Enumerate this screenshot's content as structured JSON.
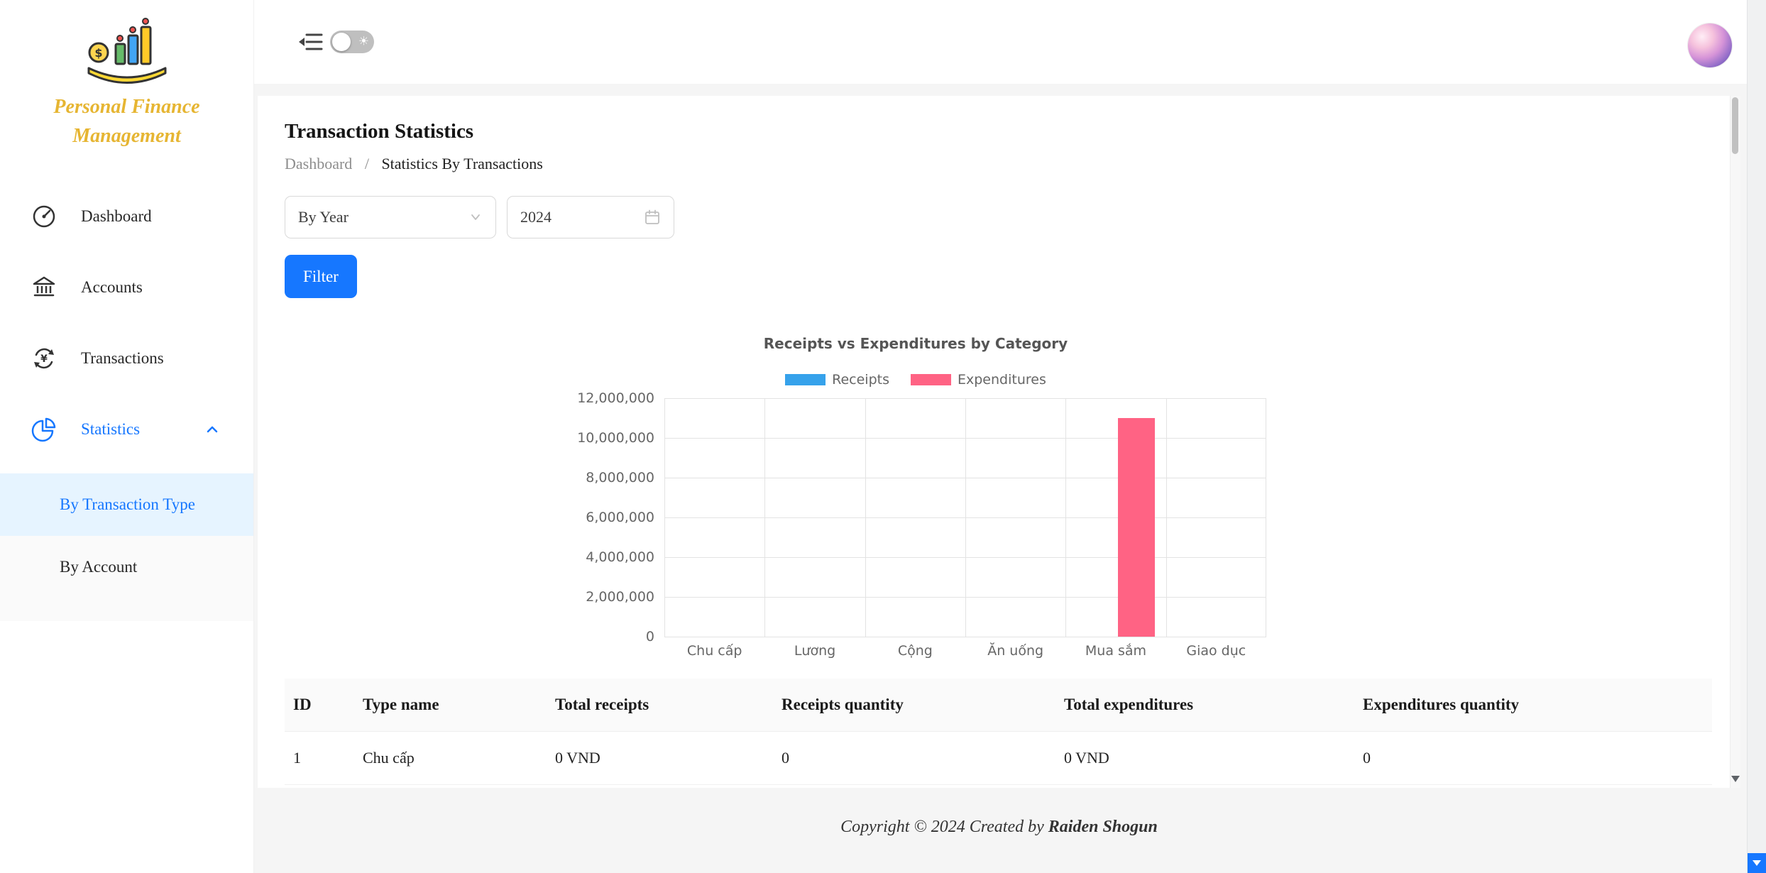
{
  "sidebar": {
    "logo_line1": "Personal Finance",
    "logo_line2": "Management",
    "items": [
      {
        "label": "Dashboard",
        "icon": "dashboard-gauge-icon"
      },
      {
        "label": "Accounts",
        "icon": "bank-icon"
      },
      {
        "label": "Transactions",
        "icon": "currency-exchange-icon"
      },
      {
        "label": "Statistics",
        "icon": "pie-chart-icon",
        "expanded": true,
        "active": true
      }
    ],
    "submenu": [
      {
        "label": "By Transaction Type",
        "active": true
      },
      {
        "label": "By Account",
        "active": false
      }
    ]
  },
  "header": {
    "theme_toggle": {
      "state": "light",
      "sun_glyph": "☀"
    }
  },
  "page": {
    "title": "Transaction Statistics",
    "breadcrumb": [
      "Dashboard",
      "Statistics By Transactions"
    ],
    "breadcrumb_separator": "/",
    "filters": {
      "period_select": "By Year",
      "year_value": "2024",
      "filter_button": "Filter"
    }
  },
  "chart_data": {
    "type": "bar",
    "title": "Receipts vs Expenditures by Category",
    "categories": [
      "Chu cấp",
      "Lương",
      "Cộng",
      "Ăn uống",
      "Mua sắm",
      "Giao dục"
    ],
    "series": [
      {
        "name": "Receipts",
        "color": "#36a2eb",
        "values": [
          0,
          0,
          0,
          0,
          0,
          0
        ]
      },
      {
        "name": "Expenditures",
        "color": "#ff6384",
        "values": [
          0,
          0,
          0,
          0,
          11000000,
          0
        ]
      }
    ],
    "xlabel": "",
    "ylabel": "",
    "ylim": [
      0,
      12000000
    ],
    "ytick_step": 2000000,
    "grid": true,
    "legend_position": "top"
  },
  "table": {
    "columns": [
      "ID",
      "Type name",
      "Total receipts",
      "Receipts quantity",
      "Total expenditures",
      "Expenditures quantity"
    ],
    "rows": [
      [
        "1",
        "Chu cấp",
        "0 VND",
        "0",
        "0 VND",
        "0"
      ]
    ]
  },
  "footer": {
    "copyright_prefix": "Copyright © 2024 Created by ",
    "author": "Raiden Shogun"
  },
  "colors": {
    "primary": "#1677ff",
    "receipts_series": "#36a2eb",
    "expenditures_series": "#ff6384",
    "active_item_bg": "#e6f4ff",
    "logo_text": "#e6b532"
  }
}
